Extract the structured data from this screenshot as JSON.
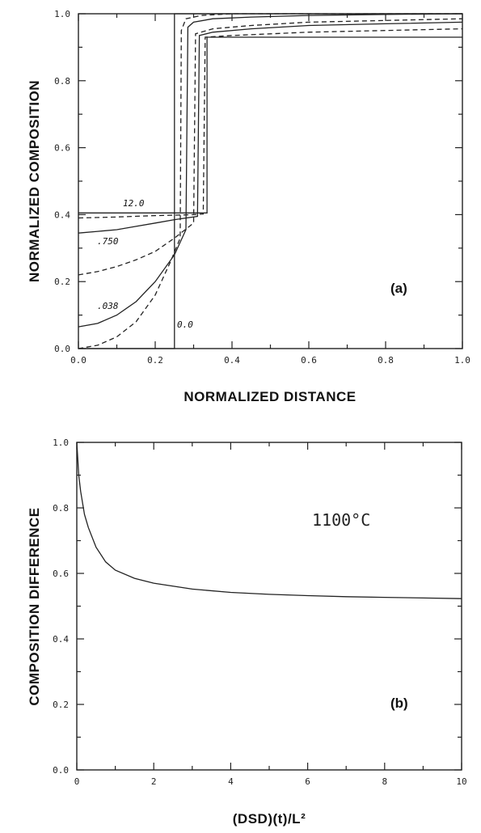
{
  "chart_data": [
    {
      "type": "line",
      "panel_label": "(a)",
      "xlabel": "NORMALIZED DISTANCE",
      "ylabel": "NORMALIZED COMPOSITION",
      "xlim": [
        0.0,
        1.0
      ],
      "ylim": [
        0.0,
        1.0
      ],
      "x_ticks": [
        0.0,
        0.2,
        0.4,
        0.6,
        0.8,
        1.0
      ],
      "x_tick_labels": [
        "0.0",
        "0.2",
        "0.4",
        "0.6",
        "0.8",
        "1.0"
      ],
      "y_ticks": [
        0.0,
        0.2,
        0.4,
        0.6,
        0.8,
        1.0
      ],
      "y_tick_labels": [
        "0.0",
        "0.2",
        "0.4",
        "0.6",
        "0.8",
        "1.0"
      ],
      "grid": false,
      "series": [
        {
          "label": "0.0",
          "style": "solid",
          "x": [
            0.0,
            0.25,
            0.25,
            1.0
          ],
          "y": [
            0.0,
            0.0,
            1.0,
            1.0
          ]
        },
        {
          "style": "dashed",
          "x": [
            0.0,
            0.05,
            0.1,
            0.15,
            0.2,
            0.24,
            0.265,
            0.268,
            0.28,
            0.32,
            0.4,
            0.6,
            0.8,
            1.0
          ],
          "y": [
            0.0,
            0.01,
            0.035,
            0.08,
            0.16,
            0.26,
            0.33,
            0.95,
            0.985,
            0.995,
            1.0,
            1.0,
            1.0,
            1.0
          ]
        },
        {
          "label": ".038",
          "style": "solid",
          "x": [
            0.0,
            0.05,
            0.1,
            0.15,
            0.2,
            0.25,
            0.28,
            0.285,
            0.3,
            0.35,
            0.45,
            0.6,
            0.8,
            1.0
          ],
          "y": [
            0.065,
            0.075,
            0.1,
            0.14,
            0.2,
            0.28,
            0.355,
            0.96,
            0.975,
            0.985,
            0.99,
            0.995,
            0.998,
            1.0
          ]
        },
        {
          "label": ".750",
          "style": "dashed",
          "x": [
            0.0,
            0.05,
            0.1,
            0.15,
            0.2,
            0.25,
            0.3,
            0.305,
            0.35,
            0.45,
            0.6,
            0.8,
            1.0
          ],
          "y": [
            0.22,
            0.23,
            0.245,
            0.265,
            0.29,
            0.33,
            0.375,
            0.94,
            0.955,
            0.965,
            0.975,
            0.98,
            0.985
          ]
        },
        {
          "style": "solid",
          "x": [
            0.0,
            0.05,
            0.1,
            0.15,
            0.2,
            0.25,
            0.31,
            0.315,
            0.35,
            0.45,
            0.6,
            0.8,
            1.0
          ],
          "y": [
            0.345,
            0.35,
            0.355,
            0.365,
            0.375,
            0.385,
            0.395,
            0.935,
            0.945,
            0.955,
            0.965,
            0.97,
            0.975
          ]
        },
        {
          "style": "dashed",
          "x": [
            0.0,
            0.1,
            0.2,
            0.3,
            0.325,
            0.33,
            0.4,
            0.5,
            0.6,
            0.8,
            1.0
          ],
          "y": [
            0.39,
            0.393,
            0.397,
            0.4,
            0.402,
            0.93,
            0.935,
            0.94,
            0.945,
            0.95,
            0.955
          ]
        },
        {
          "label": "12.0",
          "style": "solid",
          "x": [
            0.0,
            0.335,
            0.335,
            1.0
          ],
          "y": [
            0.405,
            0.405,
            0.93,
            0.93
          ]
        }
      ]
    },
    {
      "type": "line",
      "panel_label": "(b)",
      "annotation": "1100°C",
      "xlabel": "(DSD)(t)/L²",
      "ylabel": "COMPOSITION DIFFERENCE",
      "xlim": [
        0,
        10
      ],
      "ylim": [
        0.0,
        1.0
      ],
      "x_ticks": [
        0,
        2,
        4,
        6,
        8,
        10
      ],
      "x_tick_labels": [
        "0",
        "2",
        "4",
        "6",
        "8",
        "10"
      ],
      "y_ticks": [
        0.0,
        0.2,
        0.4,
        0.6,
        0.8,
        1.0
      ],
      "y_tick_labels": [
        "0.0",
        "0.2",
        "0.4",
        "0.6",
        "0.8",
        "1.0"
      ],
      "grid": false,
      "series": [
        {
          "style": "solid",
          "x": [
            0.0,
            0.05,
            0.1,
            0.2,
            0.3,
            0.5,
            0.75,
            1.0,
            1.5,
            2.0,
            3.0,
            4.0,
            5.0,
            6.0,
            7.0,
            8.0,
            9.0,
            10.0
          ],
          "y": [
            1.0,
            0.9,
            0.85,
            0.78,
            0.74,
            0.68,
            0.635,
            0.61,
            0.585,
            0.57,
            0.552,
            0.542,
            0.536,
            0.532,
            0.529,
            0.527,
            0.525,
            0.523
          ]
        }
      ]
    }
  ]
}
